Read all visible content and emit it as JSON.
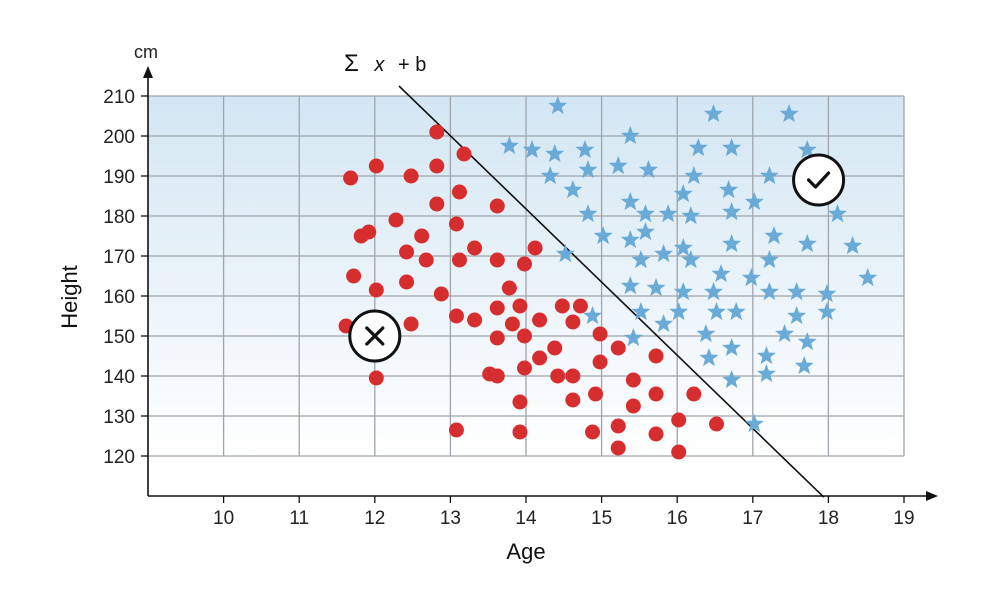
{
  "chart_data": {
    "type": "scatter",
    "title": "",
    "xlabel": "Age",
    "ylabel": "Height",
    "y_unit": "cm",
    "xlim": [
      9,
      19
    ],
    "ylim": [
      110,
      210
    ],
    "x_ticks": [
      10,
      11,
      12,
      13,
      14,
      15,
      16,
      17,
      18,
      19
    ],
    "y_ticks": [
      120,
      130,
      140,
      150,
      160,
      170,
      180,
      190,
      200,
      210
    ],
    "grid": true,
    "colors": {
      "dot": "#d62e2e",
      "star": "#6aaad6",
      "grid": "#9ea4ab",
      "axis": "#111111",
      "bg_top": "#d3e6f3",
      "bg_bottom": "#ffffff"
    },
    "boundary": {
      "label_prefix": "Σ",
      "label_var": "x",
      "label_suffix": "+ b",
      "from": [
        12.32,
        212.5
      ],
      "to": [
        17.94,
        109.7
      ]
    },
    "markers": [
      {
        "icon": "cross-icon",
        "x": 12.0,
        "y": 150
      },
      {
        "icon": "check-icon",
        "x": 17.87,
        "y": 189
      }
    ],
    "series": [
      {
        "marker": "dot",
        "points": [
          [
            12.82,
            201
          ],
          [
            13.18,
            195.5
          ],
          [
            12.02,
            192.5
          ],
          [
            12.82,
            192.5
          ],
          [
            11.68,
            189.5
          ],
          [
            12.48,
            190
          ],
          [
            13.12,
            186
          ],
          [
            12.82,
            183
          ],
          [
            13.62,
            182.5
          ],
          [
            12.28,
            179
          ],
          [
            13.08,
            178
          ],
          [
            11.82,
            175
          ],
          [
            11.92,
            176
          ],
          [
            12.62,
            175
          ],
          [
            13.32,
            172
          ],
          [
            12.42,
            171
          ],
          [
            12.68,
            169
          ],
          [
            13.12,
            169
          ],
          [
            13.62,
            169
          ],
          [
            13.98,
            168
          ],
          [
            14.12,
            172
          ],
          [
            11.72,
            165
          ],
          [
            12.42,
            163.5
          ],
          [
            12.02,
            161.5
          ],
          [
            12.88,
            160.5
          ],
          [
            13.78,
            162
          ],
          [
            11.62,
            152.5
          ],
          [
            12.48,
            153
          ],
          [
            13.08,
            155
          ],
          [
            13.32,
            154
          ],
          [
            13.62,
            157
          ],
          [
            13.92,
            157.5
          ],
          [
            14.18,
            154
          ],
          [
            14.48,
            157.5
          ],
          [
            14.72,
            157.5
          ],
          [
            14.62,
            153.5
          ],
          [
            13.62,
            149.5
          ],
          [
            13.82,
            153
          ],
          [
            13.98,
            150
          ],
          [
            14.98,
            150.5
          ],
          [
            14.38,
            147
          ],
          [
            15.22,
            147
          ],
          [
            14.18,
            144.5
          ],
          [
            14.98,
            143.5
          ],
          [
            15.72,
            145
          ],
          [
            13.52,
            140.5
          ],
          [
            13.62,
            140
          ],
          [
            13.98,
            142
          ],
          [
            14.42,
            140
          ],
          [
            14.62,
            140
          ],
          [
            15.42,
            139
          ],
          [
            12.02,
            139.5
          ],
          [
            14.92,
            135.5
          ],
          [
            15.72,
            135.5
          ],
          [
            16.22,
            135.5
          ],
          [
            13.92,
            133.5
          ],
          [
            14.62,
            134
          ],
          [
            15.42,
            132.5
          ],
          [
            13.08,
            126.5
          ],
          [
            13.92,
            126
          ],
          [
            14.88,
            126
          ],
          [
            15.22,
            127.5
          ],
          [
            15.72,
            125.5
          ],
          [
            16.02,
            129
          ],
          [
            16.52,
            128
          ],
          [
            15.22,
            122
          ],
          [
            16.02,
            121
          ]
        ]
      },
      {
        "marker": "star",
        "points": [
          [
            14.42,
            207.5
          ],
          [
            16.48,
            205.5
          ],
          [
            17.48,
            205.5
          ],
          [
            15.38,
            200
          ],
          [
            13.78,
            197.5
          ],
          [
            14.08,
            196.5
          ],
          [
            14.38,
            195.5
          ],
          [
            14.78,
            196.5
          ],
          [
            16.28,
            197
          ],
          [
            16.72,
            197
          ],
          [
            17.72,
            196.5
          ],
          [
            15.22,
            192.5
          ],
          [
            15.62,
            191.5
          ],
          [
            14.82,
            191.5
          ],
          [
            14.32,
            190
          ],
          [
            16.22,
            190
          ],
          [
            17.22,
            190
          ],
          [
            14.62,
            186.5
          ],
          [
            16.08,
            185.5
          ],
          [
            16.68,
            186.5
          ],
          [
            15.38,
            183.5
          ],
          [
            17.02,
            183.5
          ],
          [
            14.82,
            180.5
          ],
          [
            15.58,
            180.5
          ],
          [
            15.88,
            180.5
          ],
          [
            16.18,
            180
          ],
          [
            16.72,
            181
          ],
          [
            18.12,
            180.5
          ],
          [
            15.02,
            175
          ],
          [
            15.38,
            174
          ],
          [
            15.58,
            176
          ],
          [
            16.08,
            172
          ],
          [
            16.72,
            173
          ],
          [
            17.28,
            175
          ],
          [
            17.72,
            173
          ],
          [
            18.32,
            172.5
          ],
          [
            14.52,
            170.5
          ],
          [
            15.52,
            169
          ],
          [
            15.82,
            170.5
          ],
          [
            16.18,
            169
          ],
          [
            17.22,
            169
          ],
          [
            16.58,
            165.5
          ],
          [
            16.98,
            164.5
          ],
          [
            18.52,
            164.5
          ],
          [
            15.38,
            162.5
          ],
          [
            15.72,
            162
          ],
          [
            16.08,
            161
          ],
          [
            16.48,
            161
          ],
          [
            17.22,
            161
          ],
          [
            17.58,
            161
          ],
          [
            17.98,
            160.5
          ],
          [
            14.88,
            155
          ],
          [
            15.52,
            156
          ],
          [
            16.02,
            156
          ],
          [
            16.52,
            156
          ],
          [
            16.78,
            156
          ],
          [
            17.58,
            155
          ],
          [
            17.98,
            156
          ],
          [
            15.82,
            153
          ],
          [
            16.38,
            150.5
          ],
          [
            17.42,
            150.5
          ],
          [
            15.42,
            149.5
          ],
          [
            16.72,
            147
          ],
          [
            17.72,
            148.5
          ],
          [
            16.42,
            144.5
          ],
          [
            17.18,
            145
          ],
          [
            17.68,
            142.5
          ],
          [
            16.72,
            139
          ],
          [
            17.18,
            140.5
          ],
          [
            17.02,
            128
          ]
        ]
      }
    ]
  }
}
